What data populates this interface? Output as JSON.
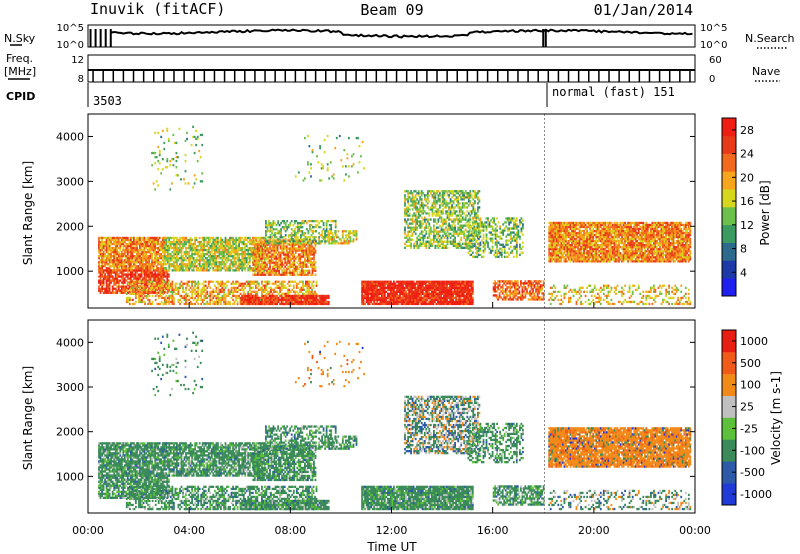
{
  "header": {
    "station": "Inuvik (fitACF)",
    "beam": "Beam 09",
    "date": "01/Jan/2014"
  },
  "aux_panels": {
    "nsky_label": "N.Sky",
    "nsky_ticks": [
      "10^5",
      "10^0"
    ],
    "nsearch_label": "N.Search",
    "nsearch_ticks": [
      "10^5",
      "10^0"
    ],
    "freq_label_line1": "Freq.",
    "freq_label_line2": "[MHz]",
    "freq_ticks": [
      "12",
      "8"
    ],
    "nave_label": "Nave",
    "nave_ticks": [
      "60",
      "0"
    ],
    "cpid_label": "CPID",
    "cpid_value": "3503",
    "mode_label": "normal (fast) 151"
  },
  "chart_data": [
    {
      "type": "heatmap",
      "name": "power-panel",
      "xlabel": "Time UT",
      "ylabel": "Slant Range [km]",
      "x_range_hours": [
        0,
        24
      ],
      "y_range_km": [
        180,
        4500
      ],
      "ytick_labels": [
        "1000",
        "2000",
        "3000",
        "4000"
      ],
      "ytick_values": [
        1000,
        2000,
        3000,
        4000
      ],
      "colorbar": {
        "label": "Power [dB]",
        "range": [
          0,
          30
        ],
        "tick_labels": [
          "4",
          "8",
          "12",
          "16",
          "20",
          "24",
          "28"
        ],
        "tick_values": [
          4,
          8,
          12,
          16,
          20,
          24,
          28
        ],
        "colors": [
          "#1f1ff0",
          "#1d3aa8",
          "#2d6b8c",
          "#3a9a60",
          "#6cc04a",
          "#d6d61e",
          "#f6a51c",
          "#f26a1e",
          "#e83a1a",
          "#f01e12"
        ]
      }
    },
    {
      "type": "heatmap",
      "name": "velocity-panel",
      "xlabel": "Time UT",
      "ylabel": "Slant Range [km]",
      "x_range_hours": [
        0,
        24
      ],
      "xtick_labels": [
        "00:00",
        "04:00",
        "08:00",
        "12:00",
        "16:00",
        "20:00",
        "00:00"
      ],
      "xtick_values": [
        0,
        4,
        8,
        12,
        16,
        20,
        24
      ],
      "y_range_km": [
        180,
        4500
      ],
      "ytick_labels": [
        "1000",
        "2000",
        "3000",
        "4000"
      ],
      "ytick_values": [
        1000,
        2000,
        3000,
        4000
      ],
      "colorbar": {
        "label": "Velocity [m s-1]",
        "tick_labels": [
          "1000",
          "500",
          "100",
          "25",
          "-25",
          "-100",
          "-500",
          "-1000"
        ],
        "colors": [
          "#1f3ad6",
          "#2d5aa8",
          "#3a8a5a",
          "#5cc03a",
          "#c0c0c0",
          "#f28a1a",
          "#f25a1a",
          "#e81e12"
        ]
      }
    }
  ]
}
